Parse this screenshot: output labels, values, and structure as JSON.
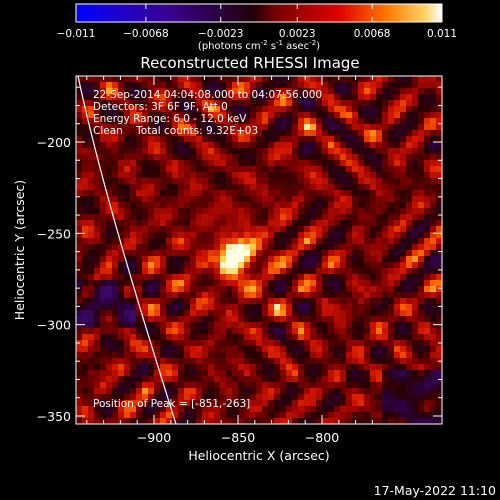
{
  "colorbar": {
    "ticks": [
      "-0.011",
      "-0.0068",
      "-0.0023",
      "0.0023",
      "0.0068",
      "0.011"
    ],
    "units_main": "(photons cm",
    "units_sup1": "-2",
    "units_mid1": " s",
    "units_sup2": "-1",
    "units_mid2": " asec",
    "units_sup3": "-2",
    "units_end": ")"
  },
  "chart_data": {
    "type": "heatmap",
    "title": "Reconstructed RHESSI Image",
    "xlabel": "Heliocentric X (arcsec)",
    "ylabel": "Heliocentric Y (arcsec)",
    "xlim": [
      -945,
      -855
    ],
    "x_ticks": [
      -900,
      -850,
      -800
    ],
    "x_tick_labels": [
      "−900",
      "−850",
      "−800"
    ],
    "y_ticks": [
      -200,
      -250,
      -300,
      -350
    ],
    "y_tick_labels": [
      "−200",
      "−250",
      "−300",
      "−350"
    ],
    "value_range": [
      -0.011,
      0.011
    ],
    "colormap": "rhessi-heat",
    "peak": {
      "x": -851,
      "y": -263
    },
    "annotations": [
      "22-Sep-2014 04:04:08.000 to 04:07:56.000",
      "Detectors: 3F 6F 9F, Att 0",
      "Energy Range: 6.0 - 12.0 keV",
      "Clean    Total counts: 9.32E+03"
    ],
    "peak_label": "Position of Peak = [-851,-263]"
  },
  "footer": {
    "date": "17-May-2022 11:10"
  }
}
